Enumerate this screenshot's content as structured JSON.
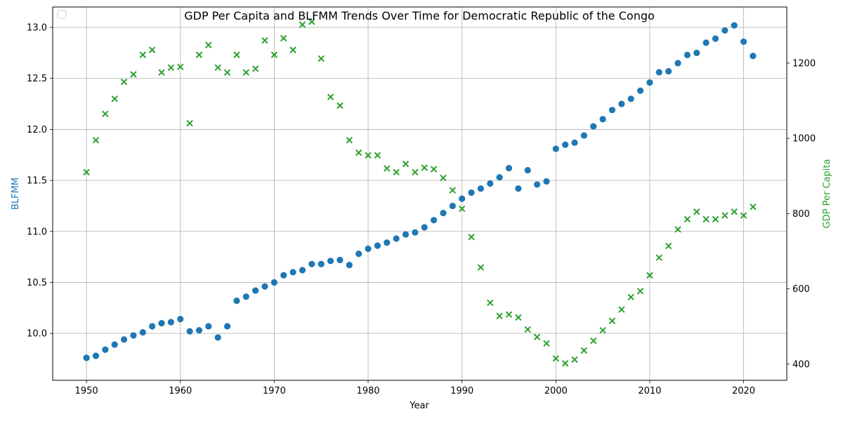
{
  "chart_data": {
    "type": "scatter",
    "title": "GDP Per Capita and BLFMM Trends Over Time for Democratic Republic of the Congo",
    "xlabel": "Year",
    "ylabel_left": "BLFMM",
    "ylabel_right": "GDP Per Capita",
    "xlim": [
      1946.4,
      1924.6
    ],
    "ylim_left": [
      9.54,
      13.2
    ],
    "ylim_right": [
      357,
      1349
    ],
    "x_ticks": [
      1950,
      1960,
      1970,
      1980,
      1990,
      2000,
      2010,
      2020
    ],
    "y_ticks_left": [
      10.0,
      10.5,
      11.0,
      11.5,
      12.0,
      12.5,
      13.0
    ],
    "y_ticks_right": [
      400,
      600,
      800,
      1000,
      1200
    ],
    "grid": true,
    "legend": "top-left, empty",
    "colors": {
      "blfmm": "#1f77b4",
      "gdp": "#2ca02c"
    },
    "series": [
      {
        "name": "BLFMM",
        "axis": "left",
        "marker": "circle",
        "x": [
          1950,
          1951,
          1952,
          1953,
          1954,
          1955,
          1956,
          1957,
          1958,
          1959,
          1960,
          1961,
          1962,
          1963,
          1964,
          1965,
          1966,
          1967,
          1968,
          1969,
          1970,
          1971,
          1972,
          1973,
          1974,
          1975,
          1976,
          1977,
          1978,
          1979,
          1980,
          1981,
          1982,
          1983,
          1984,
          1985,
          1986,
          1987,
          1988,
          1989,
          1990,
          1991,
          1992,
          1993,
          1994,
          1995,
          1996,
          1997,
          1998,
          1999,
          2000,
          2001,
          2002,
          2003,
          2004,
          2005,
          2006,
          2007,
          2008,
          2009,
          2010,
          2011,
          2012,
          2013,
          2014,
          2015,
          2016,
          2017,
          2018,
          2019,
          2020,
          2021
        ],
        "y": [
          9.76,
          9.78,
          9.84,
          9.89,
          9.94,
          9.98,
          10.01,
          10.07,
          10.1,
          10.11,
          10.14,
          10.02,
          10.03,
          10.07,
          9.96,
          10.07,
          10.32,
          10.36,
          10.42,
          10.46,
          10.5,
          10.57,
          10.6,
          10.62,
          10.68,
          10.68,
          10.71,
          10.72,
          10.67,
          10.78,
          10.83,
          10.86,
          10.89,
          10.93,
          10.97,
          10.99,
          11.04,
          11.11,
          11.18,
          11.25,
          11.32,
          11.38,
          11.42,
          11.47,
          11.53,
          11.62,
          11.42,
          11.6,
          11.46,
          11.49,
          11.81,
          11.85,
          11.87,
          11.94,
          12.03,
          12.1,
          12.19,
          12.25,
          12.3,
          12.38,
          12.46,
          12.56,
          12.57,
          12.65,
          12.73,
          12.75,
          12.85,
          12.89,
          12.97,
          13.02,
          12.86,
          12.72
        ]
      },
      {
        "name": "GDP Per Capita",
        "axis": "right",
        "marker": "x",
        "x": [
          1950,
          1951,
          1952,
          1953,
          1954,
          1955,
          1956,
          1957,
          1958,
          1959,
          1960,
          1961,
          1962,
          1963,
          1964,
          1965,
          1966,
          1967,
          1968,
          1969,
          1970,
          1971,
          1972,
          1973,
          1974,
          1975,
          1976,
          1977,
          1979,
          1978,
          1980,
          1981,
          1982,
          1983,
          1984,
          1985,
          1986,
          1987,
          1988,
          1989,
          1990,
          1991,
          1992,
          1993,
          1994,
          1995,
          1996,
          1997,
          1998,
          1999,
          2000,
          2001,
          2002,
          2003,
          2004,
          2005,
          2006,
          2007,
          2008,
          2009,
          2010,
          2011,
          2012,
          2013,
          2014,
          2015,
          2016,
          2017,
          2018,
          2019,
          2020,
          2021
        ],
        "y": [
          910,
          995,
          1065,
          1105,
          1150,
          1170,
          1222,
          1235,
          1175,
          1188,
          1190,
          1040,
          1222,
          1248,
          1188,
          1175,
          1222,
          1175,
          1185,
          1260,
          1222,
          1266,
          1235,
          1302,
          1310,
          1212,
          1110,
          1087,
          962,
          995,
          955,
          955,
          920,
          910,
          932,
          910,
          922,
          918,
          895,
          862,
          813,
          738,
          657,
          563,
          528,
          532,
          524,
          492,
          472,
          455,
          415,
          402,
          412,
          436,
          462,
          490,
          515,
          545,
          578,
          594,
          636,
          683,
          714,
          758,
          785,
          805,
          785,
          785,
          795,
          805,
          795,
          818
        ]
      }
    ]
  }
}
